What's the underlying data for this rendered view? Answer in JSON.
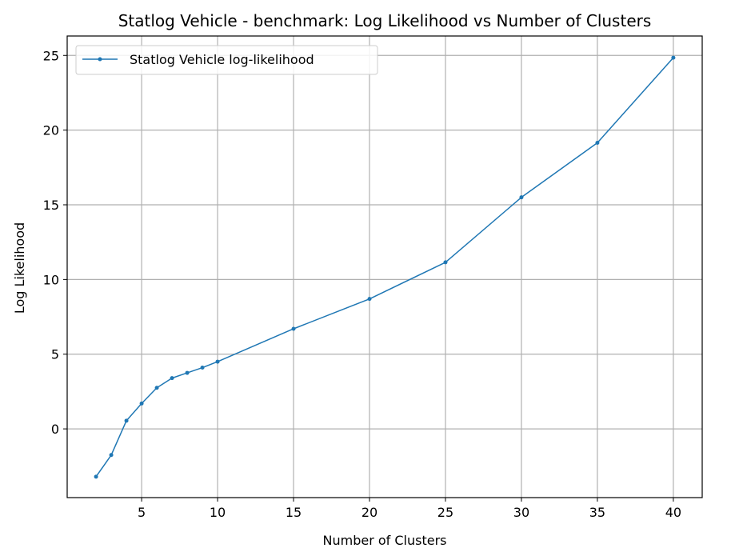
{
  "chart_data": {
    "type": "line",
    "title": "Statlog Vehicle - benchmark: Log Likelihood vs Number of Clusters",
    "xlabel": "Number of Clusters",
    "ylabel": "Log Likelihood",
    "xlim": [
      0.1,
      41.9
    ],
    "ylim": [
      -4.6,
      26.3
    ],
    "xticks": [
      5,
      10,
      15,
      20,
      25,
      30,
      35,
      40
    ],
    "yticks": [
      0,
      5,
      10,
      15,
      20,
      25
    ],
    "grid": true,
    "legend_position": "top-left",
    "series": [
      {
        "name": "Statlog Vehicle log-likelihood",
        "color": "#1f77b4",
        "x": [
          2,
          3,
          4,
          5,
          6,
          7,
          8,
          9,
          10,
          15,
          20,
          25,
          30,
          35,
          40
        ],
        "y": [
          -3.2,
          -1.75,
          0.55,
          1.7,
          2.75,
          3.4,
          3.75,
          4.1,
          4.5,
          6.7,
          8.7,
          11.15,
          15.5,
          19.15,
          24.85
        ]
      }
    ]
  }
}
